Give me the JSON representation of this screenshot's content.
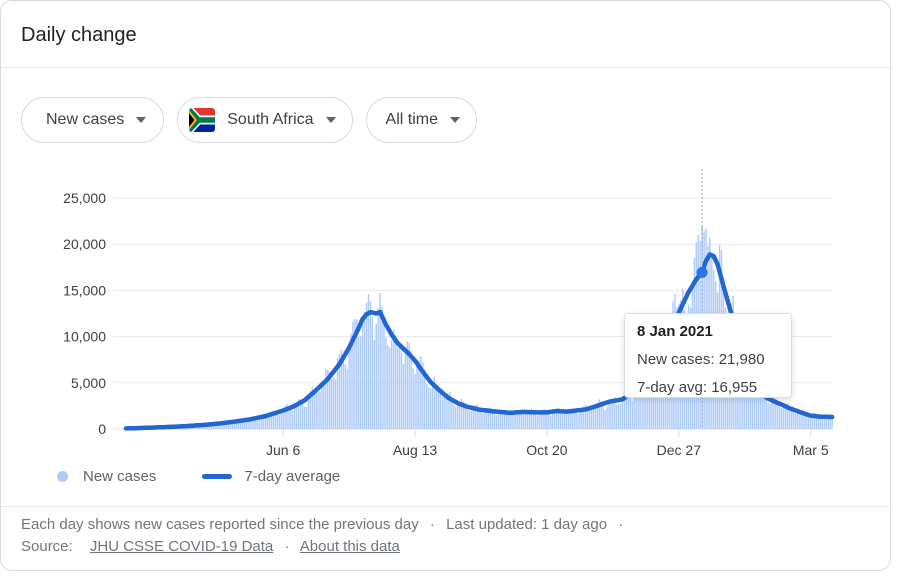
{
  "header": {
    "title": "Daily change"
  },
  "filters": {
    "metric": {
      "label": "New cases"
    },
    "region": {
      "label": "South Africa",
      "flag": "south-africa"
    },
    "range": {
      "label": "All time"
    }
  },
  "legend": {
    "items": [
      {
        "label": "New cases",
        "marker": "dot",
        "color": "#aecbfa"
      },
      {
        "label": "7-day average",
        "marker": "line",
        "color": "#2266d3"
      }
    ]
  },
  "tooltip": {
    "date": "8 Jan 2021",
    "new_cases": "New cases: 21,980",
    "seven_day_avg": "7-day avg: 16,955"
  },
  "footer": {
    "description": "Each day shows new cases reported since the previous day",
    "separator": "·",
    "last_updated": "Last updated: 1 day ago",
    "source_label": "Source:",
    "source_link": "JHU CSSE COVID-19 Data",
    "about_link": "About this data"
  },
  "chart_data": {
    "type": "bar",
    "title": "Daily change - New cases - South Africa - All time",
    "n_days": 365,
    "ylim": [
      0,
      25000
    ],
    "grid": true,
    "y_ticks": [
      {
        "value": 0,
        "label": "0"
      },
      {
        "value": 5000,
        "label": "5,000"
      },
      {
        "value": 10000,
        "label": "10,000"
      },
      {
        "value": 15000,
        "label": "15,000"
      },
      {
        "value": 20000,
        "label": "20,000"
      },
      {
        "value": 25000,
        "label": "25,000"
      }
    ],
    "x_ticks": [
      {
        "day": 81,
        "label": "Jun 6"
      },
      {
        "day": 149,
        "label": "Aug 13"
      },
      {
        "day": 217,
        "label": "Oct 20"
      },
      {
        "day": 285,
        "label": "Dec 27"
      },
      {
        "day": 353,
        "label": "Mar 5"
      }
    ],
    "series": [
      {
        "name": "New cases",
        "type": "bar",
        "color": "#aecbfa"
      },
      {
        "name": "7-day average",
        "type": "line",
        "color": "#2266d3"
      }
    ],
    "seven_day_avg_keypoints": [
      [
        0,
        60
      ],
      [
        8,
        110
      ],
      [
        16,
        170
      ],
      [
        24,
        240
      ],
      [
        32,
        330
      ],
      [
        40,
        440
      ],
      [
        48,
        590
      ],
      [
        56,
        800
      ],
      [
        64,
        1050
      ],
      [
        72,
        1400
      ],
      [
        81,
        2000
      ],
      [
        86,
        2400
      ],
      [
        92,
        3100
      ],
      [
        98,
        4200
      ],
      [
        104,
        5400
      ],
      [
        110,
        7000
      ],
      [
        115,
        8800
      ],
      [
        119,
        10500
      ],
      [
        122,
        11900
      ],
      [
        124,
        12400
      ],
      [
        126,
        12650
      ],
      [
        129,
        12500
      ],
      [
        131,
        12650
      ],
      [
        134,
        11300
      ],
      [
        137,
        10200
      ],
      [
        140,
        9300
      ],
      [
        143,
        8700
      ],
      [
        146,
        8100
      ],
      [
        149,
        7400
      ],
      [
        153,
        6200
      ],
      [
        157,
        5100
      ],
      [
        161,
        4300
      ],
      [
        166,
        3400
      ],
      [
        171,
        2800
      ],
      [
        176,
        2400
      ],
      [
        182,
        2100
      ],
      [
        190,
        1900
      ],
      [
        198,
        1750
      ],
      [
        205,
        1850
      ],
      [
        211,
        1800
      ],
      [
        217,
        1800
      ],
      [
        222,
        1950
      ],
      [
        227,
        1880
      ],
      [
        232,
        2000
      ],
      [
        237,
        2120
      ],
      [
        242,
        2450
      ],
      [
        246,
        2750
      ],
      [
        250,
        3000
      ],
      [
        256,
        3200
      ],
      [
        262,
        4200
      ],
      [
        268,
        5800
      ],
      [
        274,
        7800
      ],
      [
        280,
        10200
      ],
      [
        285,
        12600
      ],
      [
        290,
        14800
      ],
      [
        294,
        16200
      ],
      [
        297,
        16955
      ],
      [
        299,
        18200
      ],
      [
        301,
        18900
      ],
      [
        303,
        18700
      ],
      [
        305,
        17800
      ],
      [
        308,
        15500
      ],
      [
        312,
        12500
      ],
      [
        316,
        9500
      ],
      [
        320,
        7000
      ],
      [
        324,
        5200
      ],
      [
        328,
        3700
      ],
      [
        331,
        3300
      ],
      [
        334,
        3000
      ],
      [
        338,
        2650
      ],
      [
        342,
        2250
      ],
      [
        346,
        1950
      ],
      [
        350,
        1650
      ],
      [
        353,
        1450
      ],
      [
        358,
        1330
      ],
      [
        364,
        1300
      ]
    ],
    "bar_overrides": {
      "282": 13800,
      "283": 14600,
      "284": 13200,
      "291": 13200,
      "292": 15500,
      "293": 18500,
      "294": 20200,
      "295": 21000,
      "296": 20400,
      "297": 21980,
      "298": 21400,
      "299": 21700,
      "300": 19800,
      "301": 20700,
      "302": 18900,
      "303": 17200,
      "304": 16000,
      "305": 14800
    },
    "highlight": {
      "day": 297,
      "date": "8 Jan 2021",
      "new_cases": 21980,
      "seven_day_avg": 16955
    },
    "colors": {
      "bar": "#aecbfa",
      "line": "#2266d3",
      "dot": "#2f72e3",
      "grid": "#e8eaed",
      "baseline": "#dadce0",
      "crosshair": "#9aa0a6",
      "axis_text": "#3c4043"
    }
  }
}
